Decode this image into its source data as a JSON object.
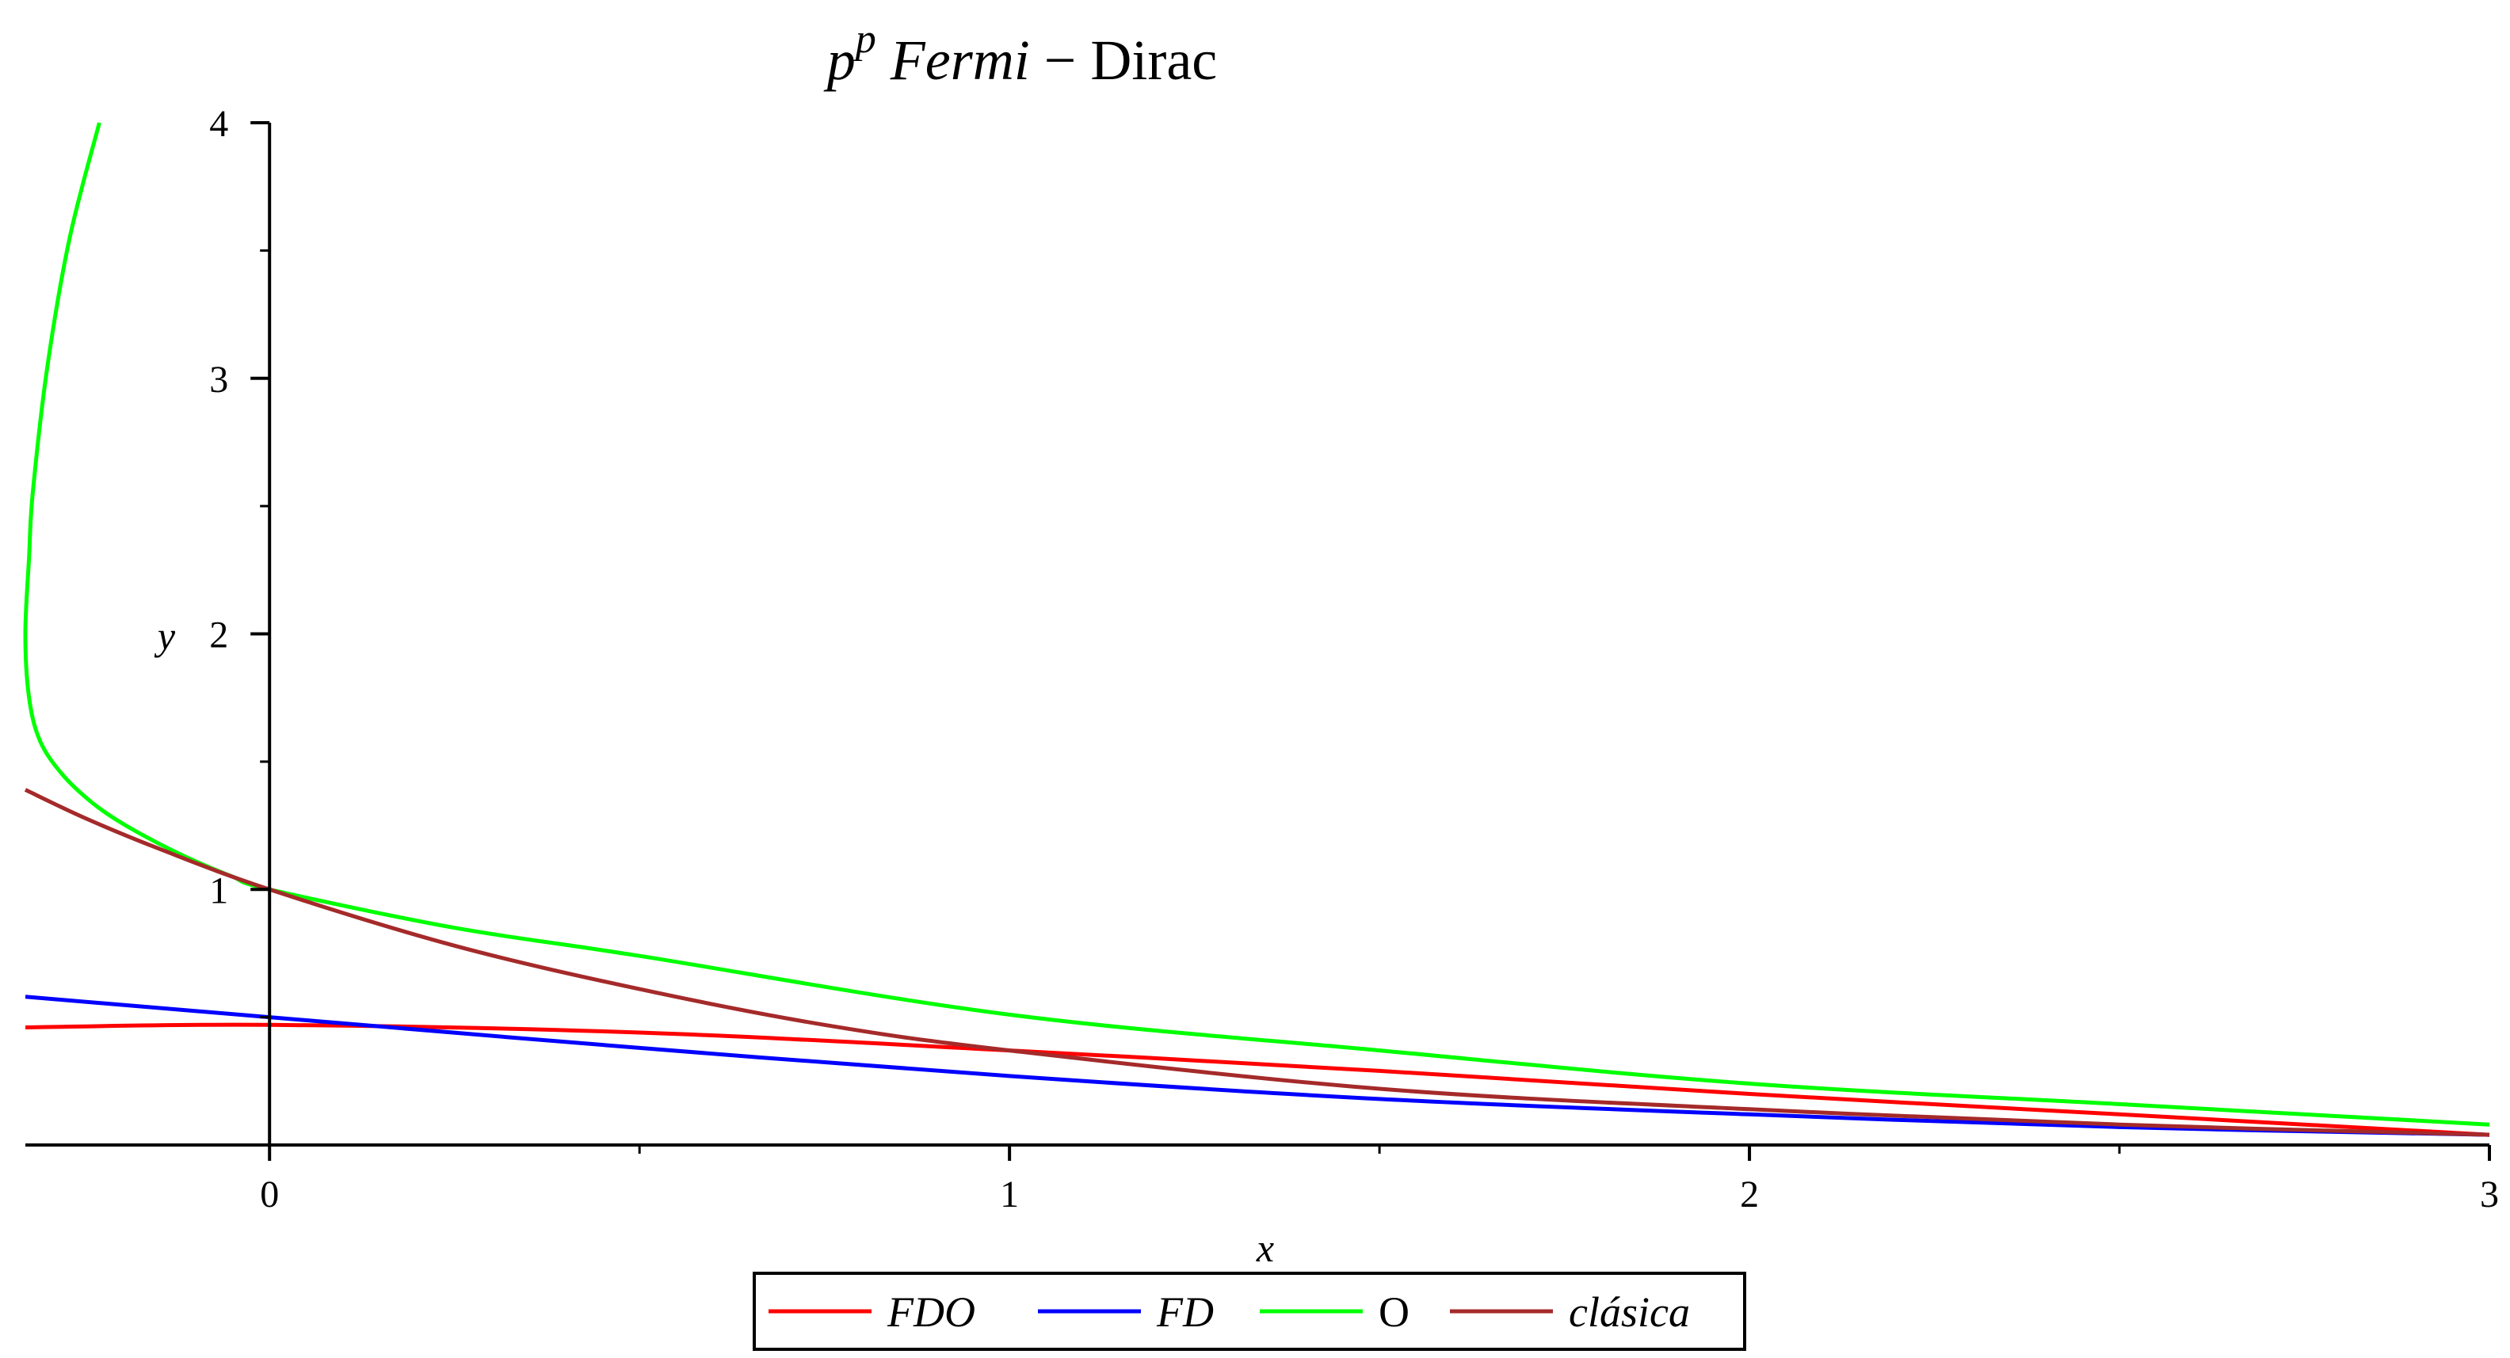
{
  "chart_data": {
    "type": "line",
    "title": {
      "base": "p",
      "superscript": "p",
      "main": "Fermi",
      "dash": "−",
      "tail": "Dirac"
    },
    "xlabel": "x",
    "ylabel": "y",
    "xlim": [
      -0.33,
      3.0
    ],
    "ylim": [
      0,
      4
    ],
    "x_ticks": [
      0,
      1,
      2,
      3
    ],
    "y_ticks": [
      1,
      2,
      3,
      4
    ],
    "x_minor_ticks": [
      0.5,
      1.5,
      2.5
    ],
    "y_minor_ticks": [
      0.5,
      1.5,
      2.5,
      3.5
    ],
    "grid": false,
    "legend_position": "bottom",
    "series": [
      {
        "name": "FDO",
        "color": "#ff0000",
        "x": [
          -0.33,
          0.0,
          0.5,
          1.0,
          1.5,
          2.0,
          2.5,
          3.0
        ],
        "y": [
          0.46,
          0.47,
          0.44,
          0.37,
          0.29,
          0.2,
          0.12,
          0.04
        ]
      },
      {
        "name": "FD",
        "color": "#0000ff",
        "x": [
          -0.33,
          0.0,
          0.5,
          1.0,
          1.5,
          2.0,
          2.5,
          3.0
        ],
        "y": [
          0.58,
          0.5,
          0.38,
          0.27,
          0.18,
          0.12,
          0.07,
          0.04
        ]
      },
      {
        "name": "O",
        "color": "#00ff00",
        "x": [
          -0.23,
          -0.27,
          -0.3,
          -0.32,
          -0.325,
          -0.33,
          -0.325,
          -0.31,
          -0.28,
          -0.24,
          -0.2,
          -0.15,
          -0.1,
          -0.05,
          0.0,
          0.25,
          0.5,
          1.0,
          1.5,
          2.0,
          2.5,
          3.0
        ],
        "y": [
          4.0,
          3.55,
          3.05,
          2.55,
          2.3,
          2.0,
          1.75,
          1.58,
          1.45,
          1.34,
          1.26,
          1.18,
          1.11,
          1.05,
          1.0,
          0.85,
          0.74,
          0.51,
          0.37,
          0.24,
          0.16,
          0.08
        ]
      },
      {
        "name": "clásica",
        "color": "#a52a2a",
        "x": [
          -0.33,
          -0.25,
          -0.15,
          0.0,
          0.25,
          0.5,
          0.75,
          1.0,
          1.5,
          2.0,
          2.5,
          3.0
        ],
        "y": [
          1.39,
          1.28,
          1.16,
          1.0,
          0.78,
          0.61,
          0.47,
          0.37,
          0.22,
          0.14,
          0.08,
          0.04
        ]
      }
    ]
  }
}
